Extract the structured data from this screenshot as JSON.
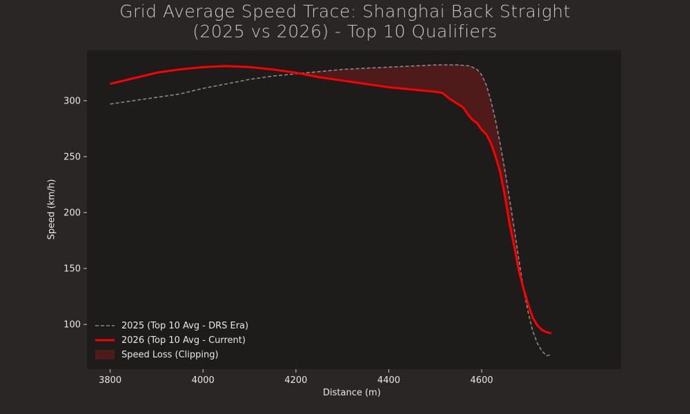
{
  "colors": {
    "background": "#2a2625",
    "plot_background": "#1d1c1b",
    "series_2025": "#8a8a8a",
    "series_2026": "#ff0000",
    "fill_loss": "#4f1a1a",
    "text": "#e8e8e8",
    "title": "#c9c9c9"
  },
  "chart_data": {
    "type": "line",
    "title_line1": "Grid Average Speed Trace: Shanghai Back Straight",
    "title_line2": "(2025 vs 2026) - Top 10 Qualifiers",
    "xlabel": "Distance (m)",
    "ylabel": "Speed (km/h)",
    "xlim": [
      3750,
      4900
    ],
    "ylim": [
      60,
      345
    ],
    "xticks": [
      3800,
      4000,
      4200,
      4400,
      4600
    ],
    "yticks": [
      100,
      150,
      200,
      250,
      300
    ],
    "grid": false,
    "legend_position": "lower-left",
    "series": [
      {
        "name": "2025 (Top 10 Avg - DRS Era)",
        "style": "dashed",
        "x": [
          3800,
          3850,
          3900,
          3950,
          4000,
          4050,
          4100,
          4150,
          4200,
          4250,
          4300,
          4350,
          4400,
          4450,
          4500,
          4550,
          4575,
          4590,
          4600,
          4610,
          4620,
          4630,
          4640,
          4650,
          4660,
          4670,
          4680,
          4690,
          4700,
          4710,
          4720,
          4730,
          4740,
          4750
        ],
        "y": [
          297,
          300,
          303,
          306,
          311,
          315,
          319,
          322,
          324,
          326,
          328,
          329,
          330,
          331,
          332,
          332,
          331,
          328,
          323,
          314,
          300,
          282,
          261,
          238,
          212,
          186,
          158,
          132,
          111,
          94,
          83,
          76,
          72,
          73
        ]
      },
      {
        "name": "2026 (Top 10 Avg - Current)",
        "style": "solid",
        "x": [
          3800,
          3850,
          3900,
          3950,
          4000,
          4050,
          4100,
          4150,
          4200,
          4250,
          4300,
          4350,
          4400,
          4450,
          4500,
          4515,
          4530,
          4545,
          4560,
          4570,
          4580,
          4590,
          4600,
          4610,
          4620,
          4630,
          4640,
          4650,
          4660,
          4670,
          4680,
          4690,
          4700,
          4710,
          4720,
          4730,
          4740,
          4750
        ],
        "y": [
          315,
          320,
          325,
          328,
          330,
          331,
          330,
          328,
          325,
          321,
          318,
          315,
          312,
          310,
          308,
          307,
          302,
          298,
          294,
          288,
          283,
          280,
          274,
          270,
          262,
          250,
          236,
          215,
          190,
          170,
          148,
          132,
          118,
          106,
          99,
          95,
          93,
          92
        ]
      }
    ],
    "fill_between": {
      "name": "Speed Loss (Clipping)",
      "description_series": [
        "2025 (Top 10 Avg - DRS Era)",
        "2026 (Top 10 Avg - Current)"
      ]
    }
  }
}
